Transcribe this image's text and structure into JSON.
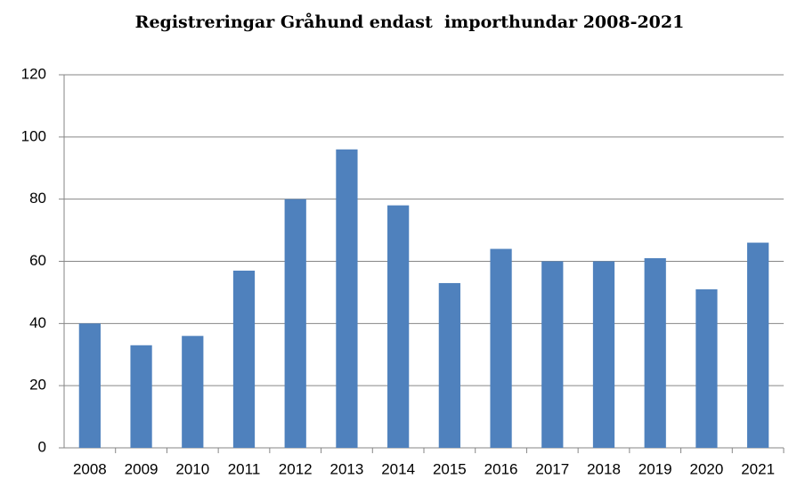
{
  "chart_data": {
    "type": "bar",
    "title": "Registreringar Gråhund endast  importhundar 2008-2021",
    "categories": [
      "2008",
      "2009",
      "2010",
      "2011",
      "2012",
      "2013",
      "2014",
      "2015",
      "2016",
      "2017",
      "2018",
      "2019",
      "2020",
      "2021"
    ],
    "values": [
      40,
      33,
      36,
      57,
      80,
      96,
      78,
      53,
      64,
      60,
      60,
      61,
      51,
      66
    ],
    "color": "#4f81bd",
    "ylim": [
      0,
      120
    ],
    "yticks": [
      0,
      20,
      40,
      60,
      80,
      100,
      120
    ],
    "grid": true
  }
}
